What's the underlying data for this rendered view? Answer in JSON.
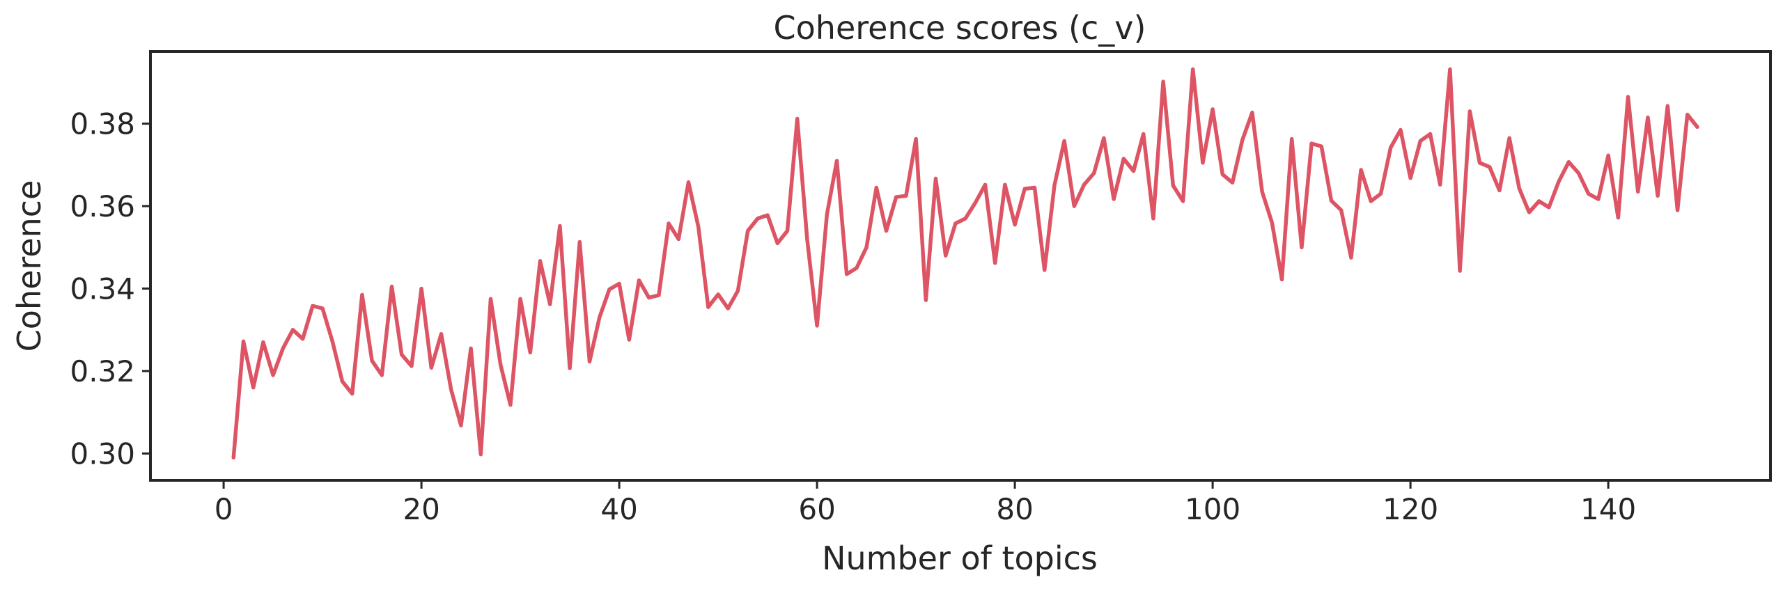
{
  "chart_data": {
    "type": "line",
    "title": "Coherence scores (c_v)",
    "xlabel": "Number of topics",
    "ylabel": "Coherence",
    "xlim": [
      -7.4,
      156.4
    ],
    "ylim": [
      0.2935,
      0.3975
    ],
    "xticks": [
      0,
      20,
      40,
      60,
      80,
      100,
      120,
      140
    ],
    "yticks": [
      0.3,
      0.32,
      0.34,
      0.36,
      0.38
    ],
    "xtick_labels": [
      "0",
      "20",
      "40",
      "60",
      "80",
      "100",
      "120",
      "140"
    ],
    "ytick_labels": [
      "0.30",
      "0.32",
      "0.34",
      "0.36",
      "0.38"
    ],
    "grid": false,
    "legend": null,
    "series": [
      {
        "color": "#dd5565",
        "x": [
          1,
          2,
          3,
          4,
          5,
          6,
          7,
          8,
          9,
          10,
          11,
          12,
          13,
          14,
          15,
          16,
          17,
          18,
          19,
          20,
          21,
          22,
          23,
          24,
          25,
          26,
          27,
          28,
          29,
          30,
          31,
          32,
          33,
          34,
          35,
          36,
          37,
          38,
          39,
          40,
          41,
          42,
          43,
          44,
          45,
          46,
          47,
          48,
          49,
          50,
          51,
          52,
          53,
          54,
          55,
          56,
          57,
          58,
          59,
          60,
          61,
          62,
          63,
          64,
          65,
          66,
          67,
          68,
          69,
          70,
          71,
          72,
          73,
          74,
          75,
          76,
          77,
          78,
          79,
          80,
          81,
          82,
          83,
          84,
          85,
          86,
          87,
          88,
          89,
          90,
          91,
          92,
          93,
          94,
          95,
          96,
          97,
          98,
          99,
          100,
          101,
          102,
          103,
          104,
          105,
          106,
          107,
          108,
          109,
          110,
          111,
          112,
          113,
          114,
          115,
          116,
          117,
          118,
          119,
          120,
          121,
          122,
          123,
          124,
          125,
          126,
          127,
          128,
          129,
          130,
          131,
          132,
          133,
          134,
          135,
          136,
          137,
          138,
          139,
          140,
          141,
          142,
          143,
          144,
          145,
          146,
          147,
          148,
          149
        ],
        "y": [
          0.299,
          0.3272,
          0.316,
          0.327,
          0.319,
          0.3255,
          0.33,
          0.3278,
          0.3358,
          0.3352,
          0.3272,
          0.3175,
          0.3145,
          0.3385,
          0.3225,
          0.319,
          0.3405,
          0.324,
          0.3212,
          0.34,
          0.3208,
          0.329,
          0.3155,
          0.3068,
          0.3255,
          0.2998,
          0.3375,
          0.3215,
          0.3118,
          0.3375,
          0.3245,
          0.3467,
          0.3362,
          0.3552,
          0.3207,
          0.3513,
          0.3223,
          0.333,
          0.3398,
          0.3412,
          0.3276,
          0.342,
          0.3378,
          0.3384,
          0.3558,
          0.352,
          0.3658,
          0.355,
          0.3355,
          0.3386,
          0.3352,
          0.3395,
          0.354,
          0.357,
          0.3578,
          0.351,
          0.354,
          0.3812,
          0.352,
          0.331,
          0.358,
          0.371,
          0.3435,
          0.345,
          0.35,
          0.3645,
          0.354,
          0.3622,
          0.3625,
          0.3763,
          0.3372,
          0.3667,
          0.348,
          0.3558,
          0.357,
          0.3608,
          0.3652,
          0.3462,
          0.3652,
          0.3555,
          0.3642,
          0.3645,
          0.3445,
          0.365,
          0.3758,
          0.36,
          0.3652,
          0.368,
          0.3765,
          0.3617,
          0.3715,
          0.3685,
          0.3775,
          0.357,
          0.3902,
          0.365,
          0.3612,
          0.3932,
          0.3705,
          0.3835,
          0.3677,
          0.3657,
          0.376,
          0.3827,
          0.3635,
          0.356,
          0.3422,
          0.3763,
          0.35,
          0.3752,
          0.3745,
          0.3613,
          0.359,
          0.3475,
          0.3688,
          0.3612,
          0.363,
          0.3742,
          0.3785,
          0.3668,
          0.3758,
          0.3775,
          0.3652,
          0.3932,
          0.3443,
          0.383,
          0.3705,
          0.3695,
          0.3638,
          0.3765,
          0.3643,
          0.3585,
          0.3612,
          0.3597,
          0.366,
          0.3707,
          0.368,
          0.363,
          0.3617,
          0.3723,
          0.3572,
          0.3865,
          0.3635,
          0.3815,
          0.3625,
          0.3843,
          0.359,
          0.3822,
          0.3792
        ]
      }
    ]
  }
}
